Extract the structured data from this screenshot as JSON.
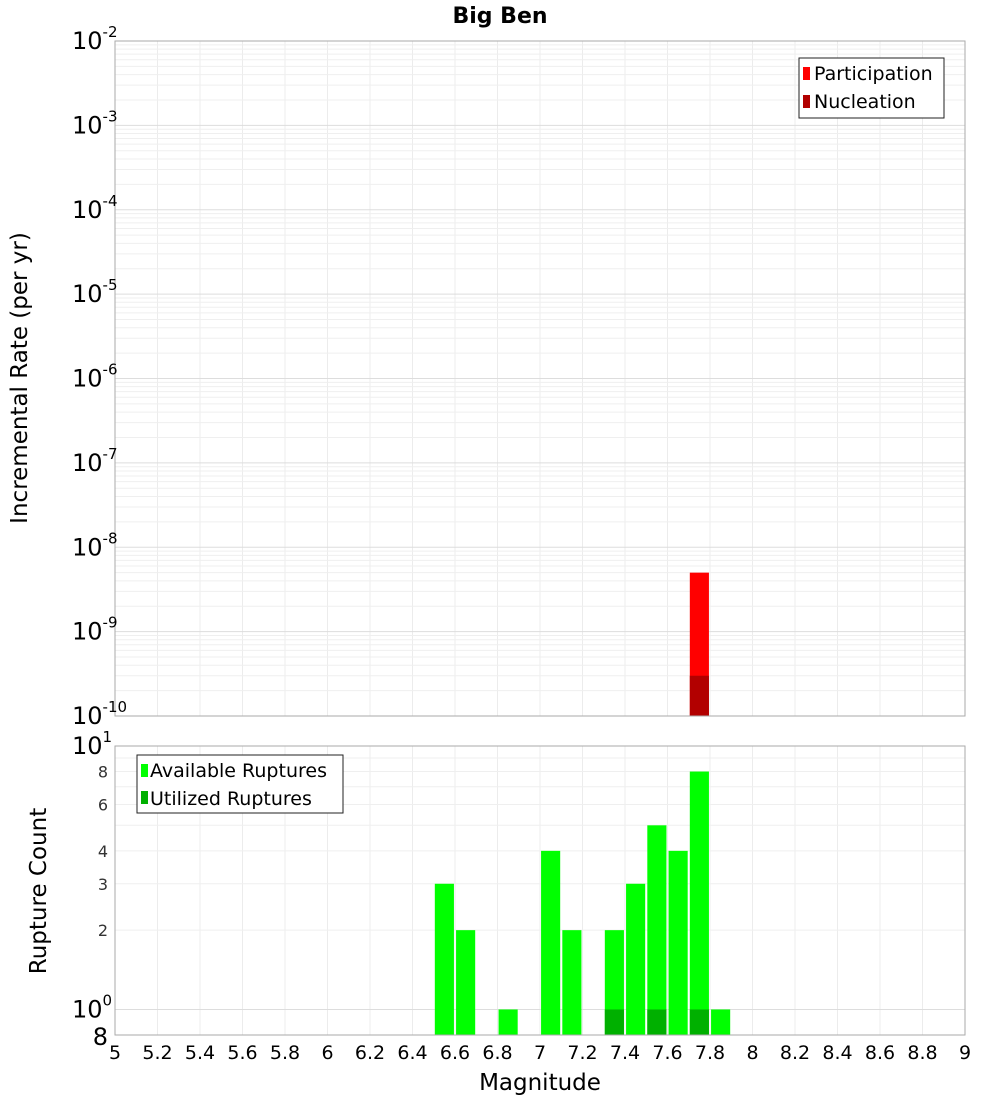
{
  "chart_data": [
    {
      "type": "bar",
      "title": "Big Ben",
      "ylabel": "Incremental Rate (per yr)",
      "yscale": "log",
      "ylim": [
        1e-10,
        0.01
      ],
      "xlim": [
        5,
        9
      ],
      "grid": true,
      "legend_position": "top-right",
      "y_tick_labels": [
        {
          "base": "10",
          "exp": "-2"
        },
        {
          "base": "10",
          "exp": "-3"
        },
        {
          "base": "10",
          "exp": "-4"
        },
        {
          "base": "10",
          "exp": "-5"
        },
        {
          "base": "10",
          "exp": "-6"
        },
        {
          "base": "10",
          "exp": "-7"
        },
        {
          "base": "10",
          "exp": "-8"
        },
        {
          "base": "10",
          "exp": "-9"
        },
        {
          "base": "10",
          "exp": "-10"
        }
      ],
      "series": [
        {
          "name": "Participation",
          "color": "#ff0000",
          "x": [
            7.75
          ],
          "values": [
            5e-09
          ]
        },
        {
          "name": "Nucleation",
          "color": "#b20000",
          "x": [
            7.75
          ],
          "values": [
            3e-10
          ]
        }
      ]
    },
    {
      "type": "bar",
      "xlabel": "Magnitude",
      "ylabel": "Rupture Count",
      "yscale": "log",
      "ylim": [
        0.8,
        10
      ],
      "xlim": [
        5,
        9
      ],
      "grid": true,
      "legend_position": "top-left",
      "x_ticks": [
        "5",
        "5.2",
        "5.4",
        "5.6",
        "5.8",
        "6",
        "6.2",
        "6.4",
        "6.6",
        "6.8",
        "7",
        "7.2",
        "7.4",
        "7.6",
        "7.8",
        "8",
        "8.2",
        "8.4",
        "8.6",
        "8.8",
        "9"
      ],
      "y_tick_labels": [
        {
          "value": 8,
          "text": "8"
        },
        {
          "value": 6,
          "text": "6"
        },
        {
          "value": 4,
          "text": "4"
        },
        {
          "value": 3,
          "text": "3"
        },
        {
          "value": 2,
          "text": "2"
        }
      ],
      "y_major_labels": [
        {
          "value": 10,
          "base": "10",
          "exp": "1"
        },
        {
          "value": 1,
          "base": "10",
          "exp": "0"
        }
      ],
      "y_bottom_label": "8",
      "series": [
        {
          "name": "Available Ruptures",
          "color": "#00ff00",
          "x": [
            6.55,
            6.65,
            6.85,
            7.05,
            7.15,
            7.35,
            7.45,
            7.55,
            7.65,
            7.75,
            7.85
          ],
          "values": [
            3,
            2,
            1,
            4,
            2,
            2,
            3,
            5,
            4,
            8,
            1
          ]
        },
        {
          "name": "Utilized Ruptures",
          "color": "#00b000",
          "x": [
            7.35,
            7.55,
            7.75
          ],
          "values": [
            1,
            1,
            1
          ]
        }
      ]
    }
  ]
}
